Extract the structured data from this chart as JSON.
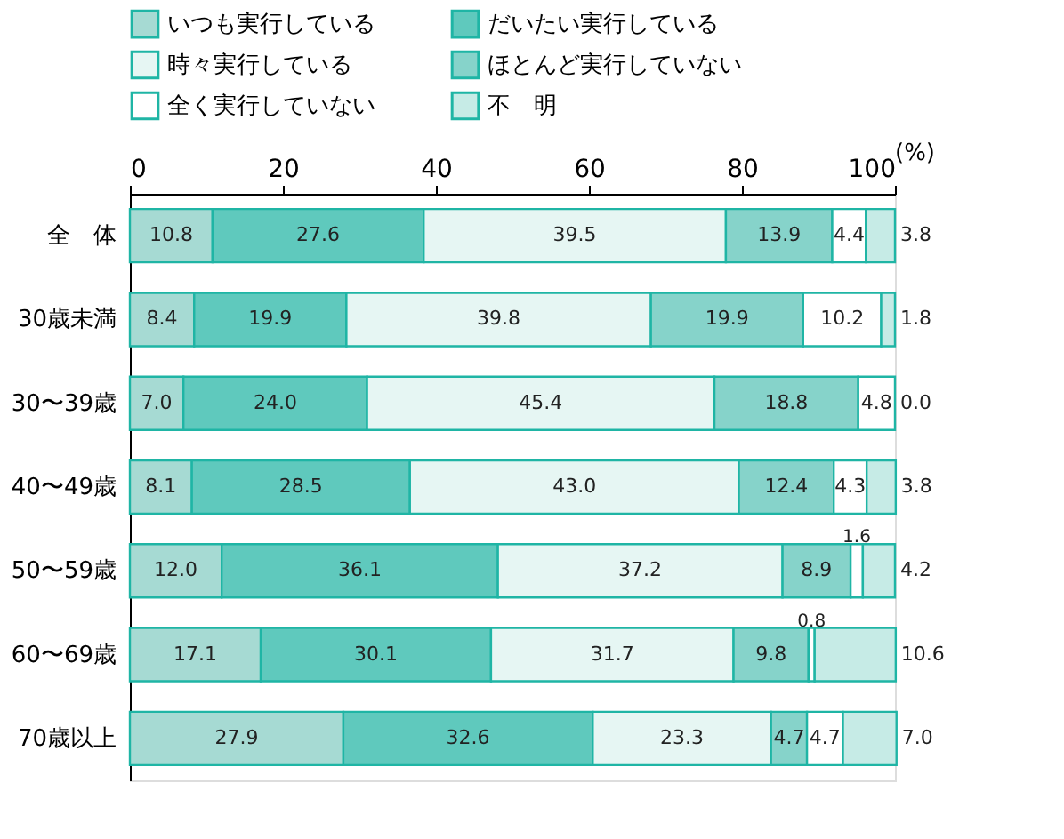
{
  "chart_data": {
    "type": "bar",
    "orientation": "horizontal",
    "stacked": true,
    "xlabel": "(%)",
    "xlim": [
      0,
      100
    ],
    "xticks": [
      0,
      20,
      40,
      60,
      80,
      100
    ],
    "grid": false,
    "legend": "top",
    "categories": [
      "全　体",
      "30歳未満",
      "30〜39歳",
      "40〜49歳",
      "50〜59歳",
      "60〜69歳",
      "70歳以上"
    ],
    "series": [
      {
        "name": "いつも実行している",
        "color": "#a6dad3",
        "values": [
          10.8,
          8.4,
          7.0,
          8.1,
          12.0,
          17.1,
          27.9
        ],
        "value_labels": [
          "10.8",
          "8.4",
          "7.0",
          "8.1",
          "12.0",
          "17.1",
          "27.9"
        ]
      },
      {
        "name": "だいたい実行している",
        "color": "#5fc9bd",
        "values": [
          27.6,
          19.9,
          24.0,
          28.5,
          36.1,
          30.1,
          32.6
        ],
        "value_labels": [
          "27.6",
          "19.9",
          "24.0",
          "28.5",
          "36.1",
          "30.1",
          "32.6"
        ]
      },
      {
        "name": "時々実行している",
        "color": "#e6f6f3",
        "values": [
          39.5,
          39.8,
          45.4,
          43.0,
          37.2,
          31.7,
          23.3
        ],
        "value_labels": [
          "39.5",
          "39.8",
          "45.4",
          "43.0",
          "37.2",
          "31.7",
          "23.3"
        ]
      },
      {
        "name": "ほとんど実行していない",
        "color": "#86d3ca",
        "values": [
          13.9,
          19.9,
          18.8,
          12.4,
          8.9,
          9.8,
          4.7
        ],
        "value_labels": [
          "13.9",
          "19.9",
          "18.8",
          "12.4",
          "8.9",
          "9.8",
          "4.7"
        ]
      },
      {
        "name": "全く実行していない",
        "color": "#ffffff",
        "values": [
          4.4,
          10.2,
          4.8,
          4.3,
          1.6,
          0.8,
          4.7
        ],
        "value_labels": [
          "4.4",
          "10.2",
          "4.8",
          "4.3",
          "1.6",
          "0.8",
          "4.7"
        ]
      },
      {
        "name": "不　明",
        "color": "#c6ebe6",
        "values": [
          3.8,
          1.8,
          0.0,
          3.8,
          4.2,
          10.6,
          7.0
        ],
        "value_labels": [
          "3.8",
          "1.8",
          "0.0",
          "3.8",
          "4.2",
          "10.6",
          "7.0"
        ]
      }
    ]
  }
}
